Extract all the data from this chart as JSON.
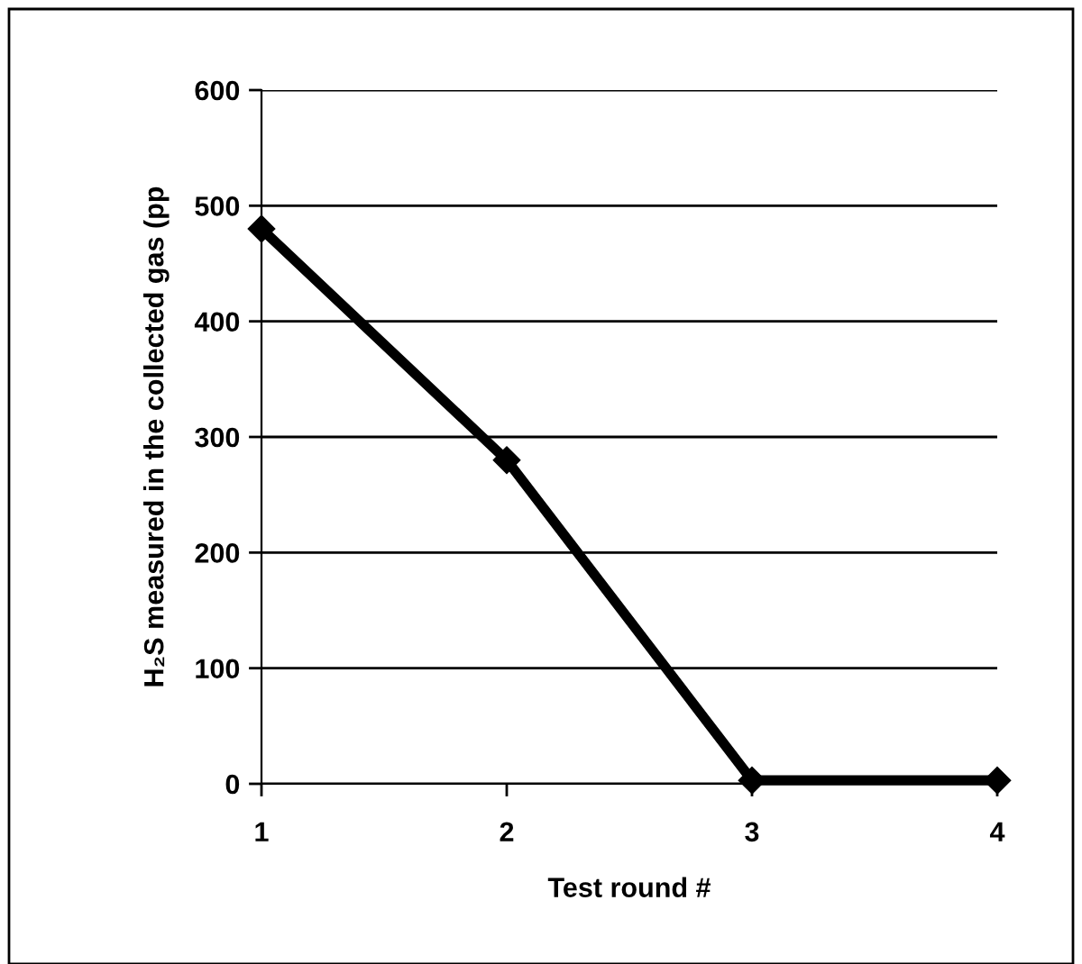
{
  "chart_data": {
    "type": "line",
    "xlabel": "Test round #",
    "ylabel": "H₂S measured in the collected gas (pp",
    "x": [
      1,
      2,
      3,
      4
    ],
    "series": [
      {
        "color": "#000000",
        "values": [
          480,
          280,
          3,
          3
        ]
      }
    ],
    "xlim": [
      1,
      4
    ],
    "xticks": [
      1,
      2,
      3,
      4
    ],
    "ylim": [
      0,
      600
    ],
    "yticks": [
      0,
      100,
      200,
      300,
      400,
      500,
      600
    ],
    "grid": "y",
    "marker": "diamond",
    "line_style": "solid",
    "legend": false
  }
}
